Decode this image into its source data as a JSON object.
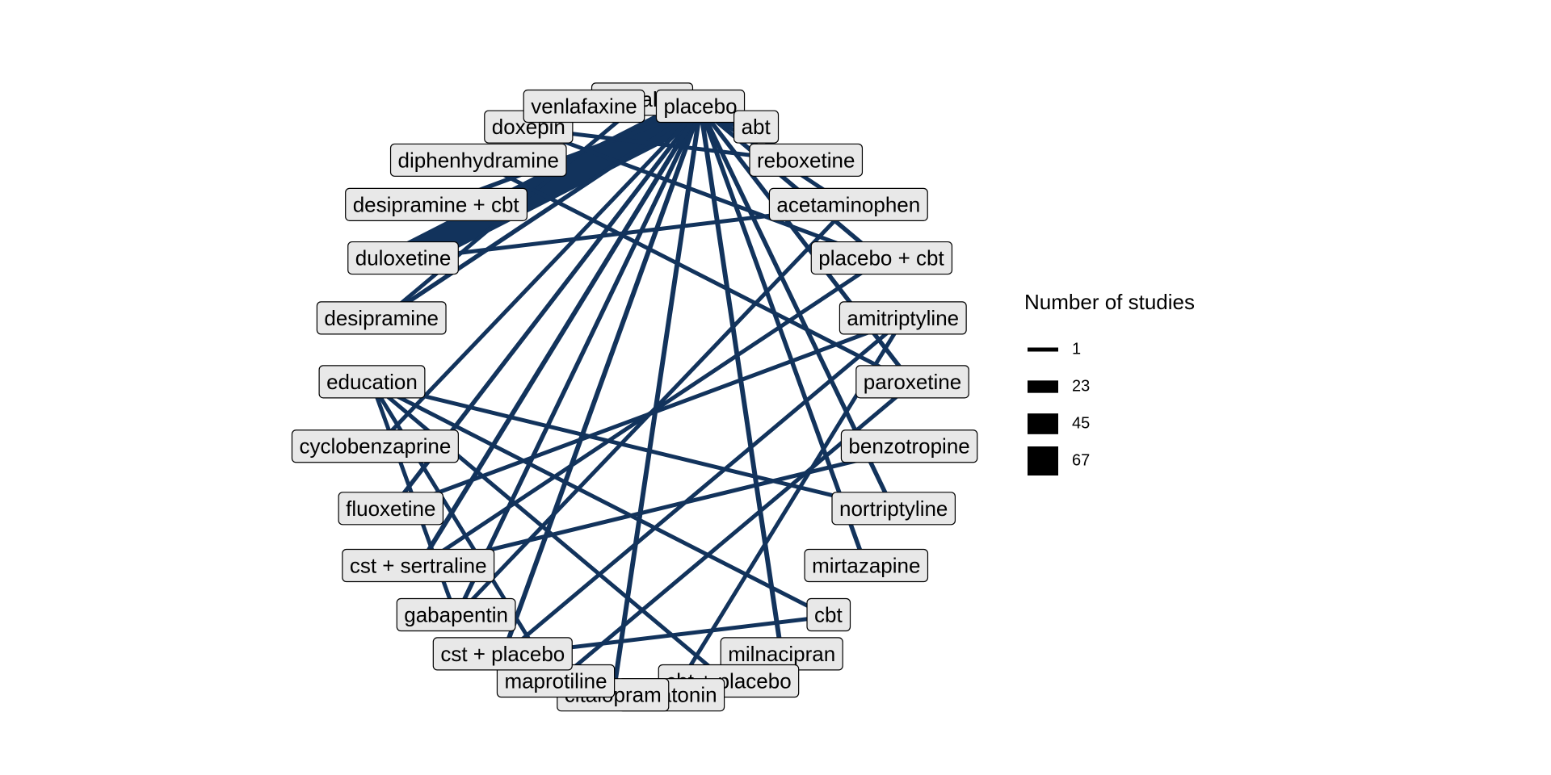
{
  "chart_data": {
    "type": "network",
    "edge_color": "#12335c",
    "node_fill": "#e8e8e8",
    "nodes": [
      "sertraline",
      "placebo",
      "abt",
      "reboxetine",
      "acetaminophen",
      "placebo + cbt",
      "amitriptyline",
      "paroxetine",
      "benzotropine",
      "nortriptyline",
      "mirtazapine",
      "cbt",
      "milnacipran",
      "cbt + placebo",
      "melatonin",
      "citalopram",
      "maprotiline",
      "cst + placebo",
      "gabapentin",
      "cst + sertraline",
      "fluoxetine",
      "cyclobenzaprine",
      "education",
      "desipramine",
      "duloxetine",
      "desipramine + cbt",
      "diphenhydramine",
      "doxepin",
      "venlafaxine"
    ],
    "edges": [
      {
        "source": "placebo",
        "target": "duloxetine",
        "studies": 67
      },
      {
        "source": "placebo",
        "target": "sertraline",
        "studies": 2
      },
      {
        "source": "placebo",
        "target": "reboxetine",
        "studies": 2
      },
      {
        "source": "placebo",
        "target": "placebo + cbt",
        "studies": 2
      },
      {
        "source": "placebo",
        "target": "paroxetine",
        "studies": 2
      },
      {
        "source": "placebo",
        "target": "nortriptyline",
        "studies": 2
      },
      {
        "source": "placebo",
        "target": "mirtazapine",
        "studies": 2
      },
      {
        "source": "placebo",
        "target": "milnacipran",
        "studies": 3
      },
      {
        "source": "placebo",
        "target": "gabapentin",
        "studies": 2
      },
      {
        "source": "placebo",
        "target": "fluoxetine",
        "studies": 2
      },
      {
        "source": "placebo",
        "target": "cyclobenzaprine",
        "studies": 1
      },
      {
        "source": "placebo",
        "target": "desipramine",
        "studies": 2
      },
      {
        "source": "placebo",
        "target": "desipramine + cbt",
        "studies": 2
      },
      {
        "source": "placebo",
        "target": "venlafaxine",
        "studies": 2
      },
      {
        "source": "placebo",
        "target": "cst + placebo",
        "studies": 3
      },
      {
        "source": "placebo",
        "target": "cst + sertraline",
        "studies": 3
      },
      {
        "source": "placebo",
        "target": "citalopram",
        "studies": 3
      },
      {
        "source": "placebo",
        "target": "abt",
        "studies": 1
      },
      {
        "source": "placebo",
        "target": "acetaminophen",
        "studies": 1
      },
      {
        "source": "reboxetine",
        "target": "doxepin",
        "studies": 1
      },
      {
        "source": "placebo + cbt",
        "target": "cst + sertraline",
        "studies": 1
      },
      {
        "source": "sertraline",
        "target": "desipramine",
        "studies": 1
      },
      {
        "source": "paroxetine",
        "target": "diphenhydramine",
        "studies": 1
      },
      {
        "source": "nortriptyline",
        "target": "education",
        "studies": 1
      },
      {
        "source": "paroxetine",
        "target": "maprotiline",
        "studies": 1
      },
      {
        "source": "amitriptyline",
        "target": "melatonin",
        "studies": 1
      },
      {
        "source": "amitriptyline",
        "target": "fluoxetine",
        "studies": 1
      },
      {
        "source": "amitriptyline",
        "target": "cst + placebo",
        "studies": 1
      },
      {
        "source": "acetaminophen",
        "target": "gabapentin",
        "studies": 1
      },
      {
        "source": "acetaminophen",
        "target": "duloxetine",
        "studies": 1
      },
      {
        "source": "benzotropine",
        "target": "cst + sertraline",
        "studies": 1
      },
      {
        "source": "cbt",
        "target": "education",
        "studies": 1
      },
      {
        "source": "cbt",
        "target": "cst + placebo",
        "studies": 1
      },
      {
        "source": "cbt + placebo",
        "target": "education",
        "studies": 1
      },
      {
        "source": "maprotiline",
        "target": "education",
        "studies": 1
      },
      {
        "source": "gabapentin",
        "target": "education",
        "studies": 1
      },
      {
        "source": "placebo + cbt",
        "target": "doxepin",
        "studies": 1
      }
    ],
    "legend": {
      "title": "Number of studies",
      "items": [
        {
          "label": "1",
          "value": 1
        },
        {
          "label": "23",
          "value": 23
        },
        {
          "label": "45",
          "value": 45
        },
        {
          "label": "67",
          "value": 67
        }
      ]
    }
  }
}
